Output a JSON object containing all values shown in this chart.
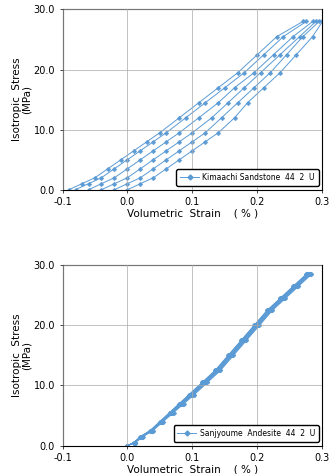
{
  "subplot1": {
    "legend_label": "Kimaachi Sandstone  44  2  U",
    "xlim": [
      -0.1,
      0.3
    ],
    "ylim": [
      0.0,
      30.0
    ],
    "xticks": [
      -0.1,
      0.0,
      0.1,
      0.2,
      0.3
    ],
    "yticks": [
      0.0,
      10.0,
      20.0,
      30.0
    ],
    "xlabel": "Volumetric  Strain    ( % )",
    "ylabel": "Isotropic  Stress",
    "ylabel2": "(MPa)",
    "line_color": "#5b9bd5",
    "marker": "D",
    "markersize": 2.5,
    "linewidth": 0.7,
    "lines": [
      {
        "x": [
          -0.09,
          -0.07,
          -0.05,
          -0.03,
          -0.01,
          0.01,
          0.03,
          0.05,
          0.08,
          0.11,
          0.14,
          0.17,
          0.2,
          0.23,
          0.27
        ],
        "y": [
          0.0,
          1.0,
          2.0,
          3.5,
          5.0,
          6.5,
          8.0,
          9.5,
          12.0,
          14.5,
          17.0,
          19.5,
          22.5,
          25.5,
          28.0
        ]
      },
      {
        "x": [
          -0.08,
          -0.06,
          -0.04,
          -0.02,
          0.0,
          0.02,
          0.04,
          0.06,
          0.09,
          0.12,
          0.15,
          0.18,
          0.21,
          0.24,
          0.275
        ],
        "y": [
          0.0,
          1.0,
          2.0,
          3.5,
          5.0,
          6.5,
          8.0,
          9.5,
          12.0,
          14.5,
          17.0,
          19.5,
          22.5,
          25.5,
          28.0
        ]
      },
      {
        "x": [
          -0.06,
          -0.04,
          -0.02,
          0.0,
          0.02,
          0.04,
          0.06,
          0.08,
          0.11,
          0.14,
          0.165,
          0.195,
          0.225,
          0.255,
          0.285
        ],
        "y": [
          0.0,
          1.0,
          2.0,
          3.5,
          5.0,
          6.5,
          8.0,
          9.5,
          12.0,
          14.5,
          17.0,
          19.5,
          22.5,
          25.5,
          28.0
        ]
      },
      {
        "x": [
          -0.04,
          -0.02,
          0.0,
          0.02,
          0.04,
          0.06,
          0.08,
          0.1,
          0.13,
          0.155,
          0.18,
          0.205,
          0.235,
          0.265,
          0.29
        ],
        "y": [
          0.0,
          1.0,
          2.0,
          3.5,
          5.0,
          6.5,
          8.0,
          9.5,
          12.0,
          14.5,
          17.0,
          19.5,
          22.5,
          25.5,
          28.0
        ]
      },
      {
        "x": [
          -0.02,
          0.0,
          0.02,
          0.04,
          0.06,
          0.08,
          0.1,
          0.12,
          0.145,
          0.17,
          0.195,
          0.22,
          0.245,
          0.27,
          0.295
        ],
        "y": [
          0.0,
          1.0,
          2.0,
          3.5,
          5.0,
          6.5,
          8.0,
          9.5,
          12.0,
          14.5,
          17.0,
          19.5,
          22.5,
          25.5,
          28.0
        ]
      },
      {
        "x": [
          0.0,
          0.02,
          0.04,
          0.06,
          0.08,
          0.1,
          0.12,
          0.14,
          0.165,
          0.185,
          0.21,
          0.235,
          0.26,
          0.285,
          0.3
        ],
        "y": [
          0.0,
          1.0,
          2.0,
          3.5,
          5.0,
          6.5,
          8.0,
          9.5,
          12.0,
          14.5,
          17.0,
          19.5,
          22.5,
          25.5,
          28.0
        ]
      }
    ]
  },
  "subplot2": {
    "legend_label": "Sanjyoume  Andesite  44  2  U",
    "xlim": [
      -0.1,
      0.3
    ],
    "ylim": [
      0.0,
      30.0
    ],
    "xticks": [
      -0.1,
      0.0,
      0.1,
      0.2,
      0.3
    ],
    "yticks": [
      0.0,
      10.0,
      20.0,
      30.0
    ],
    "xlabel": "Volumetric  Strain    ( % )",
    "ylabel": "Isotropic  Stress",
    "ylabel2": "(MPa)",
    "line_color": "#5b9bd5",
    "marker": "D",
    "markersize": 2.5,
    "linewidth": 0.7,
    "lines": [
      {
        "x": [
          0.0,
          0.01,
          0.02,
          0.035,
          0.05,
          0.065,
          0.08,
          0.095,
          0.115,
          0.135,
          0.155,
          0.175,
          0.195,
          0.215,
          0.235,
          0.255,
          0.275
        ],
        "y": [
          0.0,
          0.5,
          1.5,
          2.5,
          4.0,
          5.5,
          7.0,
          8.5,
          10.5,
          12.5,
          15.0,
          17.5,
          20.0,
          22.5,
          24.5,
          26.5,
          28.5
        ]
      },
      {
        "x": [
          0.0,
          0.01,
          0.02,
          0.035,
          0.05,
          0.065,
          0.08,
          0.095,
          0.115,
          0.135,
          0.155,
          0.175,
          0.195,
          0.215,
          0.235,
          0.255,
          0.275
        ],
        "y": [
          0.0,
          0.5,
          1.5,
          2.5,
          4.0,
          5.5,
          7.0,
          8.5,
          10.5,
          12.5,
          15.0,
          17.5,
          20.0,
          22.5,
          24.5,
          26.5,
          28.5
        ]
      },
      {
        "x": [
          0.0,
          0.01,
          0.021,
          0.036,
          0.051,
          0.066,
          0.081,
          0.096,
          0.116,
          0.136,
          0.156,
          0.176,
          0.196,
          0.216,
          0.236,
          0.256,
          0.276
        ],
        "y": [
          0.0,
          0.5,
          1.5,
          2.5,
          4.0,
          5.5,
          7.0,
          8.5,
          10.5,
          12.5,
          15.0,
          17.5,
          20.0,
          22.5,
          24.5,
          26.5,
          28.5
        ]
      },
      {
        "x": [
          0.0,
          0.01,
          0.021,
          0.036,
          0.051,
          0.066,
          0.081,
          0.097,
          0.117,
          0.137,
          0.157,
          0.177,
          0.197,
          0.217,
          0.237,
          0.257,
          0.277
        ],
        "y": [
          0.0,
          0.5,
          1.5,
          2.5,
          4.0,
          5.5,
          7.0,
          8.5,
          10.5,
          12.5,
          15.0,
          17.5,
          20.0,
          22.5,
          24.5,
          26.5,
          28.5
        ]
      },
      {
        "x": [
          0.0,
          0.011,
          0.022,
          0.037,
          0.052,
          0.067,
          0.082,
          0.098,
          0.118,
          0.138,
          0.158,
          0.178,
          0.198,
          0.218,
          0.238,
          0.258,
          0.278
        ],
        "y": [
          0.0,
          0.5,
          1.5,
          2.5,
          4.0,
          5.5,
          7.0,
          8.5,
          10.5,
          12.5,
          15.0,
          17.5,
          20.0,
          22.5,
          24.5,
          26.5,
          28.5
        ]
      },
      {
        "x": [
          0.0,
          0.011,
          0.022,
          0.037,
          0.052,
          0.067,
          0.083,
          0.099,
          0.119,
          0.139,
          0.159,
          0.179,
          0.199,
          0.219,
          0.239,
          0.259,
          0.279
        ],
        "y": [
          0.0,
          0.5,
          1.5,
          2.5,
          4.0,
          5.5,
          7.0,
          8.5,
          10.5,
          12.5,
          15.0,
          17.5,
          20.0,
          22.5,
          24.5,
          26.5,
          28.5
        ]
      },
      {
        "x": [
          0.0,
          0.011,
          0.022,
          0.038,
          0.053,
          0.068,
          0.084,
          0.1,
          0.12,
          0.14,
          0.16,
          0.18,
          0.2,
          0.22,
          0.24,
          0.26,
          0.28
        ],
        "y": [
          0.0,
          0.5,
          1.5,
          2.5,
          4.0,
          5.5,
          7.0,
          8.5,
          10.5,
          12.5,
          15.0,
          17.5,
          20.0,
          22.5,
          24.5,
          26.5,
          28.5
        ]
      },
      {
        "x": [
          0.0,
          0.011,
          0.023,
          0.038,
          0.053,
          0.069,
          0.085,
          0.101,
          0.121,
          0.141,
          0.161,
          0.181,
          0.201,
          0.221,
          0.241,
          0.261,
          0.281
        ],
        "y": [
          0.0,
          0.5,
          1.5,
          2.5,
          4.0,
          5.5,
          7.0,
          8.5,
          10.5,
          12.5,
          15.0,
          17.5,
          20.0,
          22.5,
          24.5,
          26.5,
          28.5
        ]
      },
      {
        "x": [
          0.0,
          0.011,
          0.023,
          0.039,
          0.054,
          0.07,
          0.086,
          0.102,
          0.122,
          0.142,
          0.162,
          0.182,
          0.202,
          0.222,
          0.242,
          0.262,
          0.282
        ],
        "y": [
          0.0,
          0.5,
          1.5,
          2.5,
          4.0,
          5.5,
          7.0,
          8.5,
          10.5,
          12.5,
          15.0,
          17.5,
          20.0,
          22.5,
          24.5,
          26.5,
          28.5
        ]
      },
      {
        "x": [
          0.0,
          0.012,
          0.024,
          0.039,
          0.055,
          0.071,
          0.087,
          0.103,
          0.123,
          0.143,
          0.163,
          0.183,
          0.203,
          0.223,
          0.243,
          0.263,
          0.283
        ],
        "y": [
          0.0,
          0.5,
          1.5,
          2.5,
          4.0,
          5.5,
          7.0,
          8.5,
          10.5,
          12.5,
          15.0,
          17.5,
          20.0,
          22.5,
          24.5,
          26.5,
          28.5
        ]
      }
    ]
  },
  "bg_color": "#ffffff",
  "grid_color": "#aaaaaa",
  "grid_linewidth": 0.5
}
